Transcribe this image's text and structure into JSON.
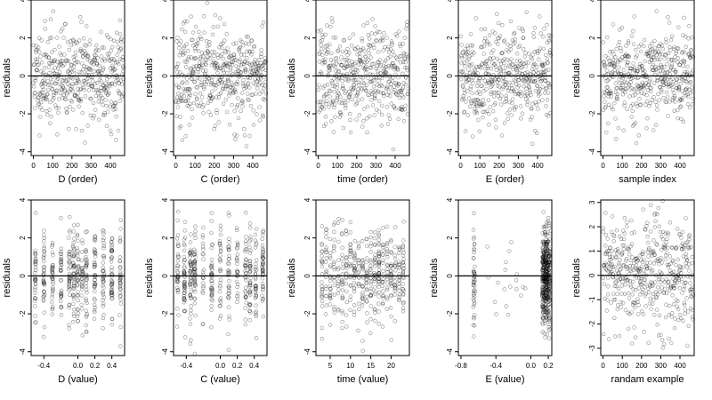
{
  "chart_data": [
    {
      "type": "scatter",
      "xlabel": "D (order)",
      "ylabel": "residuals",
      "xlim": [
        -12,
        474
      ],
      "ylim": [
        -4.2,
        4
      ],
      "xticks": [
        0,
        100,
        200,
        300,
        400
      ],
      "yticks": [
        -4,
        -2,
        0,
        2,
        4
      ],
      "ytick_labels": [
        "-4",
        "-2",
        "0",
        "2",
        "4"
      ],
      "points": null,
      "gen": {
        "kind": "order",
        "seed": 11,
        "n": 470
      }
    },
    {
      "type": "scatter",
      "xlabel": "C (order)",
      "ylabel": "residuals",
      "xlim": [
        -12,
        474
      ],
      "ylim": [
        -4.2,
        4
      ],
      "xticks": [
        0,
        100,
        200,
        300,
        400
      ],
      "yticks": [
        -4,
        -2,
        0,
        2,
        4
      ],
      "ytick_labels": [
        "-4",
        "-2",
        "0",
        "2",
        "4"
      ],
      "points": null,
      "gen": {
        "kind": "order",
        "seed": 23,
        "n": 470
      }
    },
    {
      "type": "scatter",
      "xlabel": "time (order)",
      "ylabel": "residuals",
      "xlim": [
        -12,
        474
      ],
      "ylim": [
        -4.2,
        4
      ],
      "xticks": [
        0,
        100,
        200,
        300,
        400
      ],
      "yticks": [
        -4,
        -2,
        0,
        2,
        4
      ],
      "ytick_labels": [
        "-4",
        "-2",
        "0",
        "2",
        "4"
      ],
      "points": null,
      "gen": {
        "kind": "order",
        "seed": 37,
        "n": 470
      }
    },
    {
      "type": "scatter",
      "xlabel": "E (order)",
      "ylabel": "residuals",
      "xlim": [
        -12,
        474
      ],
      "ylim": [
        -4.2,
        4
      ],
      "xticks": [
        0,
        100,
        200,
        300,
        400
      ],
      "yticks": [
        -4,
        -2,
        0,
        2,
        4
      ],
      "ytick_labels": [
        "-4",
        "-2",
        "0",
        "2",
        "4"
      ],
      "points": null,
      "gen": {
        "kind": "order",
        "seed": 41,
        "n": 470
      }
    },
    {
      "type": "scatter",
      "xlabel": "sample index",
      "ylabel": "residuals",
      "xlim": [
        -12,
        474
      ],
      "ylim": [
        -4.2,
        4
      ],
      "xticks": [
        0,
        100,
        200,
        300,
        400
      ],
      "yticks": [
        -4,
        -2,
        0,
        2,
        4
      ],
      "ytick_labels": [
        "-4",
        "-2",
        "0",
        "2",
        "4"
      ],
      "points": null,
      "gen": {
        "kind": "order",
        "seed": 53,
        "n": 470
      }
    },
    {
      "type": "scatter",
      "xlabel": "D (value)",
      "ylabel": "residuals",
      "xlim": [
        -0.55,
        0.55
      ],
      "ylim": [
        -4.2,
        4
      ],
      "xticks": [
        -0.4,
        0,
        0.2,
        0.4
      ],
      "xtick_labels": [
        "-0.4",
        "0.0",
        "0.2",
        "0.4"
      ],
      "yticks": [
        -4,
        -2,
        0,
        2,
        4
      ],
      "ytick_labels": [
        "-4",
        "-2",
        "0",
        "2",
        "4"
      ],
      "points": null,
      "gen": {
        "kind": "cols",
        "seed": 61,
        "cols": [
          -0.5,
          -0.4,
          -0.3,
          -0.2,
          -0.1,
          -0.05,
          0.0,
          0.05,
          0.1,
          0.2,
          0.3,
          0.4,
          0.5
        ]
      }
    },
    {
      "type": "scatter",
      "xlabel": "C (value)",
      "ylabel": "residuals",
      "xlim": [
        -0.55,
        0.55
      ],
      "ylim": [
        -4.2,
        4
      ],
      "xticks": [
        -0.4,
        0,
        0.2,
        0.4
      ],
      "xtick_labels": [
        "-0.4",
        "0.0",
        "0.2",
        "0.4"
      ],
      "yticks": [
        -4,
        -2,
        0,
        2,
        4
      ],
      "ytick_labels": [
        "-4",
        "-2",
        "0",
        "2",
        "4"
      ],
      "points": null,
      "gen": {
        "kind": "cols",
        "seed": 67,
        "cols": [
          -0.5,
          -0.42,
          -0.35,
          -0.3,
          -0.2,
          -0.1,
          0.0,
          0.1,
          0.2,
          0.3,
          0.35,
          0.42,
          0.5
        ]
      }
    },
    {
      "type": "scatter",
      "xlabel": "time (value)",
      "ylabel": "residuals",
      "xlim": [
        1.5,
        24.5
      ],
      "ylim": [
        -4.2,
        4
      ],
      "xticks": [
        5,
        10,
        15,
        20
      ],
      "yticks": [
        -4,
        -2,
        0,
        2,
        4
      ],
      "ytick_labels": [
        "-4",
        "-2",
        "0",
        "2",
        "4"
      ],
      "points": null,
      "gen": {
        "kind": "time",
        "seed": 71
      }
    },
    {
      "type": "scatter",
      "xlabel": "E (value)",
      "ylabel": "residuals",
      "xlim": [
        -0.83,
        0.24
      ],
      "ylim": [
        -4.2,
        4
      ],
      "xticks": [
        -0.8,
        -0.4,
        0,
        0.2
      ],
      "xtick_labels": [
        "-0.8",
        "-0.4",
        "0.0",
        "0.2"
      ],
      "yticks": [
        -4,
        -2,
        0,
        2,
        4
      ],
      "ytick_labels": [
        "-4",
        "-2",
        "0",
        "2",
        "4"
      ],
      "points": null,
      "gen": {
        "kind": "E",
        "seed": 79
      }
    },
    {
      "type": "scatter",
      "xlabel": "randam example",
      "ylabel": "residuals",
      "xlim": [
        -12,
        474
      ],
      "ylim": [
        -3.3,
        3.1
      ],
      "xticks": [
        0,
        100,
        200,
        300,
        400
      ],
      "yticks": [
        -3,
        -2,
        -1,
        0,
        1,
        2,
        3
      ],
      "ytick_labels": [
        "-3",
        "-2",
        "-1",
        "0",
        "1",
        "2",
        "3"
      ],
      "points": null,
      "gen": {
        "kind": "order",
        "seed": 97,
        "n": 470
      }
    }
  ]
}
